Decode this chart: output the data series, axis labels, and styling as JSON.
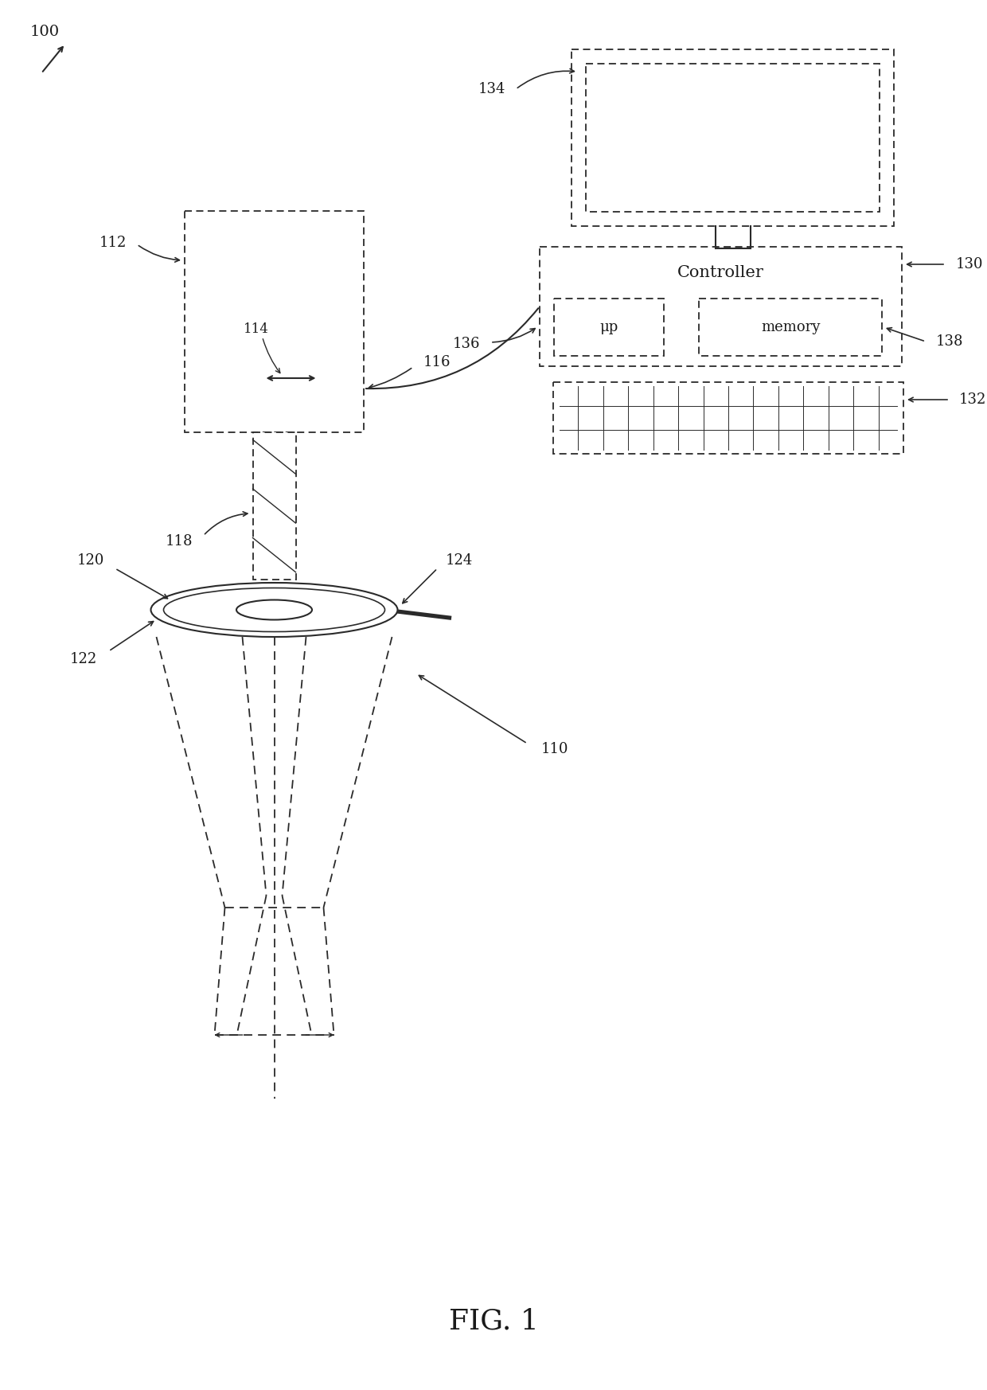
{
  "bg_color": "#ffffff",
  "fig_label": "FIG. 1",
  "ref_100": "100",
  "ref_110": "110",
  "ref_112": "112",
  "ref_114": "114",
  "ref_116": "116",
  "ref_118": "118",
  "ref_120": "120",
  "ref_122": "122",
  "ref_124": "124",
  "ref_130": "130",
  "ref_132": "132",
  "ref_134": "134",
  "ref_136": "136",
  "ref_138": "138",
  "controller_text": "Controller",
  "up_text": "μp",
  "memory_text": "memory",
  "line_color": "#2a2a2a",
  "dashed_lw": 1.3,
  "solid_lw": 1.5,
  "figsize": [
    12.4,
    17.46
  ],
  "dpi": 100,
  "xlim": [
    0,
    1240
  ],
  "ylim": [
    1746,
    0
  ]
}
